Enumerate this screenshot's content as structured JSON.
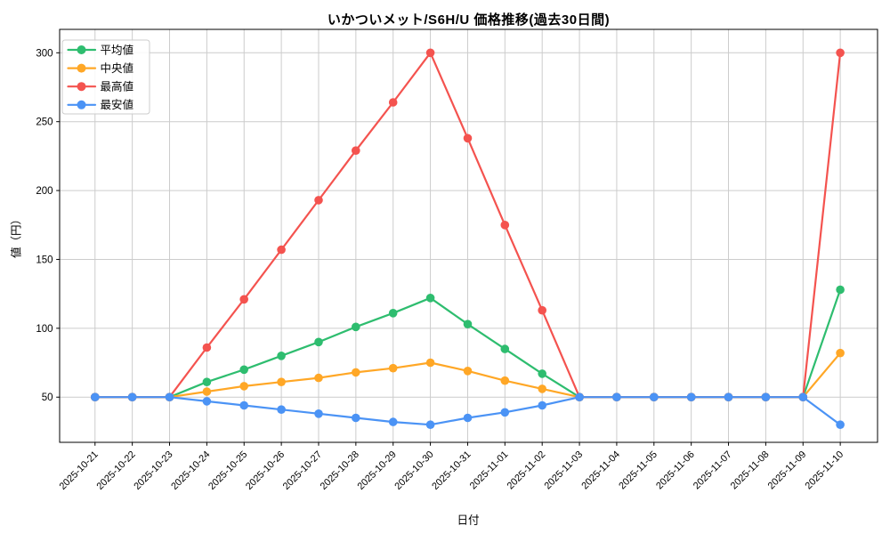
{
  "figure": {
    "title": "いかついメット/S6H/U 価格推移(過去30日間)",
    "xlabel": "日付",
    "ylabel": "値（円）"
  },
  "chart_data": {
    "type": "line",
    "title": "いかついメット/S6H/U 価格推移(過去30日間)",
    "xlabel": "日付",
    "ylabel": "値（円）",
    "x": [
      "2025-10-21",
      "2025-10-22",
      "2025-10-23",
      "2025-10-24",
      "2025-10-25",
      "2025-10-26",
      "2025-10-27",
      "2025-10-28",
      "2025-10-29",
      "2025-10-30",
      "2025-10-31",
      "2025-11-01",
      "2025-11-02",
      "2025-11-03",
      "2025-11-04",
      "2025-11-05",
      "2025-11-06",
      "2025-11-07",
      "2025-11-08",
      "2025-11-09",
      "2025-11-10"
    ],
    "series": [
      {
        "name": "平均値",
        "key": "average",
        "color": "#2ebd6f",
        "values": [
          50,
          50,
          50,
          61,
          70,
          80,
          90,
          101,
          111,
          122,
          103,
          85,
          67,
          50,
          50,
          50,
          50,
          50,
          50,
          50,
          128
        ]
      },
      {
        "name": "中央値",
        "key": "median",
        "color": "#ffa726",
        "values": [
          50,
          50,
          50,
          54,
          58,
          61,
          64,
          68,
          71,
          75,
          69,
          62,
          56,
          50,
          50,
          50,
          50,
          50,
          50,
          50,
          82
        ]
      },
      {
        "name": "最高値",
        "key": "max",
        "color": "#f4534f",
        "values": [
          50,
          50,
          50,
          86,
          121,
          157,
          193,
          229,
          264,
          300,
          238,
          175,
          113,
          50,
          50,
          50,
          50,
          50,
          50,
          50,
          300
        ]
      },
      {
        "name": "最安値",
        "key": "min",
        "color": "#4b93f5",
        "values": [
          50,
          50,
          50,
          47,
          44,
          41,
          38,
          35,
          32,
          30,
          35,
          39,
          44,
          50,
          50,
          50,
          50,
          50,
          50,
          50,
          30
        ]
      }
    ],
    "yticks": [
      50,
      100,
      150,
      200,
      250,
      300
    ],
    "ylim": [
      17.2,
      317
    ],
    "xlim": [
      -0.95,
      21.0
    ],
    "grid": true,
    "grid_color": "#cccccc",
    "axis_color": "#000000",
    "background": "#ffffff",
    "legend_position": "upper-left",
    "x_tick_rotation_deg": 45
  }
}
